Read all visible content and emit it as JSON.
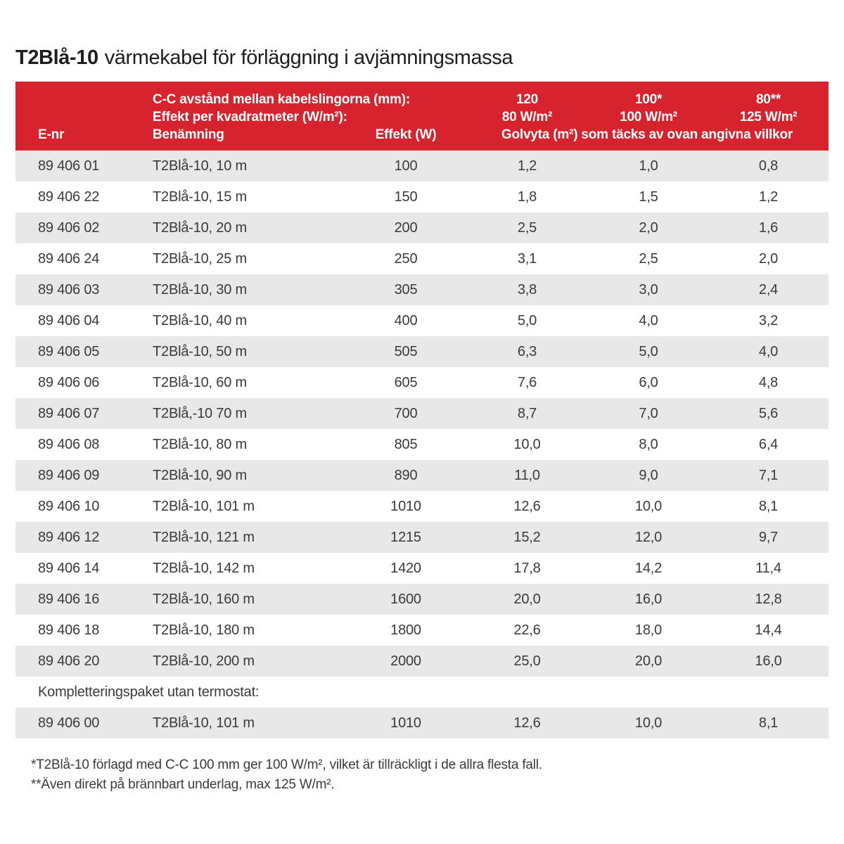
{
  "title": {
    "product": "T2Blå-10",
    "rest": "värmekabel för förläggning i avjämningsmassa"
  },
  "colors": {
    "header_red": "#d7232e",
    "row_alt_gray": "#e8e8e8",
    "header_text": "#ffffff",
    "body_text": "#3a3a3a"
  },
  "table": {
    "header": {
      "cc_line": "C-C avstånd mellan kabelslingorna (mm):",
      "effekt_line": "Effekt per kvadratmeter (W/m²):",
      "e_nr": "E-nr",
      "benamning": "Benämning",
      "effekt_w": "Effekt (W)",
      "spacing_120": "120",
      "spacing_100": "100*",
      "spacing_80": "80**",
      "power_80": "80 W/m²",
      "power_100": "100 W/m²",
      "power_125": "125 W/m²",
      "golvyta_span": "Golvyta (m²) som täcks av ovan angivna villkor"
    },
    "rows": [
      {
        "e_nr": "89 406 01",
        "name": "T2Blå-10, 10 m",
        "effekt": "100",
        "v120": "1,2",
        "v100": "1,0",
        "v80": "0,8"
      },
      {
        "e_nr": "89 406 22",
        "name": "T2Blå-10, 15 m",
        "effekt": "150",
        "v120": "1,8",
        "v100": "1,5",
        "v80": "1,2"
      },
      {
        "e_nr": "89 406 02",
        "name": "T2Blå-10, 20 m",
        "effekt": "200",
        "v120": "2,5",
        "v100": "2,0",
        "v80": "1,6"
      },
      {
        "e_nr": "89 406 24",
        "name": "T2Blå-10, 25 m",
        "effekt": "250",
        "v120": "3,1",
        "v100": "2,5",
        "v80": "2,0"
      },
      {
        "e_nr": "89 406 03",
        "name": "T2Blå-10, 30 m",
        "effekt": "305",
        "v120": "3,8",
        "v100": "3,0",
        "v80": "2,4"
      },
      {
        "e_nr": "89 406 04",
        "name": "T2Blå-10, 40 m",
        "effekt": "400",
        "v120": "5,0",
        "v100": "4,0",
        "v80": "3,2"
      },
      {
        "e_nr": "89 406 05",
        "name": "T2Blå-10, 50 m",
        "effekt": "505",
        "v120": "6,3",
        "v100": "5,0",
        "v80": "4,0"
      },
      {
        "e_nr": "89 406 06",
        "name": "T2Blå-10, 60 m",
        "effekt": "605",
        "v120": "7,6",
        "v100": "6,0",
        "v80": "4,8"
      },
      {
        "e_nr": "89 406 07",
        "name": "T2Blå,-10 70 m",
        "effekt": "700",
        "v120": "8,7",
        "v100": "7,0",
        "v80": "5,6"
      },
      {
        "e_nr": "89 406 08",
        "name": "T2Blå-10, 80 m",
        "effekt": "805",
        "v120": "10,0",
        "v100": "8,0",
        "v80": "6,4"
      },
      {
        "e_nr": "89 406 09",
        "name": "T2Blå-10, 90 m",
        "effekt": "890",
        "v120": "11,0",
        "v100": "9,0",
        "v80": "7,1"
      },
      {
        "e_nr": "89 406 10",
        "name": "T2Blå-10, 101 m",
        "effekt": "1010",
        "v120": "12,6",
        "v100": "10,0",
        "v80": "8,1"
      },
      {
        "e_nr": "89 406 12",
        "name": "T2Blå-10, 121 m",
        "effekt": "1215",
        "v120": "15,2",
        "v100": "12,0",
        "v80": "9,7"
      },
      {
        "e_nr": "89 406 14",
        "name": "T2Blå-10, 142 m",
        "effekt": "1420",
        "v120": "17,8",
        "v100": "14,2",
        "v80": "11,4"
      },
      {
        "e_nr": "89 406 16",
        "name": "T2Blå-10, 160 m",
        "effekt": "1600",
        "v120": "20,0",
        "v100": "16,0",
        "v80": "12,8"
      },
      {
        "e_nr": "89 406 18",
        "name": "T2Blå-10, 180 m",
        "effekt": "1800",
        "v120": "22,6",
        "v100": "18,0",
        "v80": "14,4"
      },
      {
        "e_nr": "89 406 20",
        "name": "T2Blå-10, 200 m",
        "effekt": "2000",
        "v120": "25,0",
        "v100": "20,0",
        "v80": "16,0"
      }
    ],
    "section_label": "Kompletteringspaket utan termostat:",
    "extra_row": {
      "e_nr": "89 406 00",
      "name": "T2Blå-10, 101 m",
      "effekt": "1010",
      "v120": "12,6",
      "v100": "10,0",
      "v80": "8,1"
    }
  },
  "footnotes": {
    "note1": "*T2Blå-10 förlagd med C-C 100 mm ger 100 W/m², vilket är tillräckligt i de allra flesta fall.",
    "note2": "**Även direkt på brännbart underlag, max 125 W/m²."
  }
}
